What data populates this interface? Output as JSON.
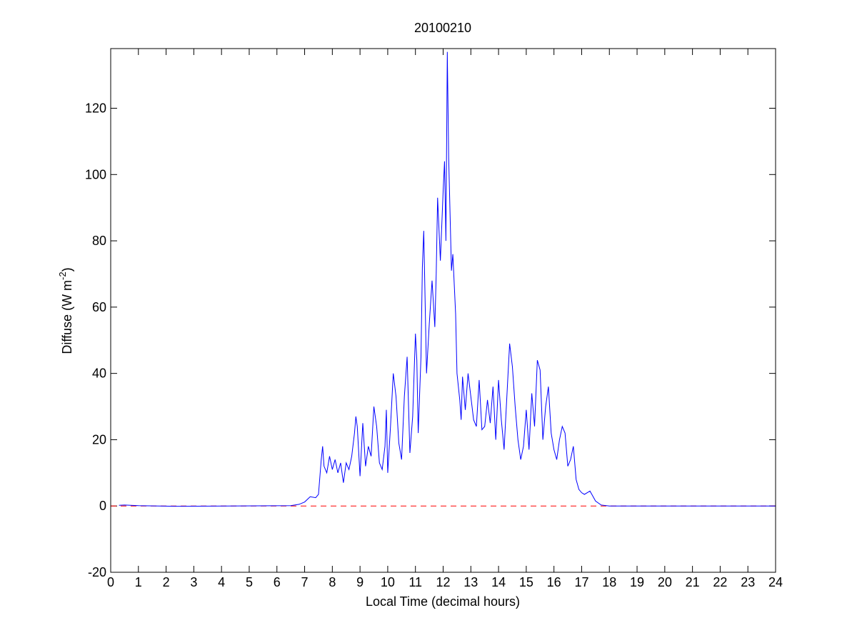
{
  "chart_data": {
    "type": "line",
    "title": "20100210",
    "xlabel": "Local Time (decimal hours)",
    "ylabel": {
      "text": "Diffuse (W m",
      "superscript": "-2",
      "suffix": ")"
    },
    "xlim": [
      0,
      24
    ],
    "ylim": [
      -20,
      138
    ],
    "xticks": [
      0,
      1,
      2,
      3,
      4,
      5,
      6,
      7,
      8,
      9,
      10,
      11,
      12,
      13,
      14,
      15,
      16,
      17,
      18,
      19,
      20,
      21,
      22,
      23,
      24
    ],
    "yticks": [
      -20,
      0,
      20,
      40,
      60,
      80,
      100,
      120
    ],
    "grid": false,
    "x": [
      0.3,
      0.5,
      1,
      2.3,
      6.5,
      6.8,
      7.0,
      7.2,
      7.4,
      7.5,
      7.6,
      7.65,
      7.7,
      7.8,
      7.9,
      8.0,
      8.1,
      8.2,
      8.3,
      8.4,
      8.5,
      8.6,
      8.7,
      8.8,
      8.85,
      8.9,
      9.0,
      9.1,
      9.2,
      9.3,
      9.4,
      9.5,
      9.6,
      9.7,
      9.8,
      9.9,
      9.95,
      10.0,
      10.1,
      10.2,
      10.3,
      10.4,
      10.5,
      10.6,
      10.7,
      10.8,
      10.9,
      11.0,
      11.05,
      11.1,
      11.2,
      11.25,
      11.3,
      11.4,
      11.5,
      11.6,
      11.7,
      11.75,
      11.8,
      11.9,
      12.0,
      12.05,
      12.1,
      12.15,
      12.2,
      12.3,
      12.35,
      12.45,
      12.5,
      12.6,
      12.65,
      12.7,
      12.8,
      12.9,
      13.0,
      13.1,
      13.2,
      13.3,
      13.4,
      13.5,
      13.6,
      13.7,
      13.8,
      13.9,
      14.0,
      14.1,
      14.2,
      14.3,
      14.4,
      14.5,
      14.6,
      14.7,
      14.8,
      14.9,
      15.0,
      15.1,
      15.2,
      15.3,
      15.4,
      15.5,
      15.6,
      15.7,
      15.8,
      15.9,
      16.0,
      16.1,
      16.2,
      16.3,
      16.4,
      16.5,
      16.6,
      16.7,
      16.8,
      16.9,
      17.0,
      17.1,
      17.3,
      17.4,
      17.5,
      17.7,
      18.0,
      24.0
    ],
    "series": [
      {
        "color": "#0000ff",
        "values": [
          0.2,
          0.3,
          0.1,
          -0.1,
          0.1,
          0.5,
          1.2,
          2.8,
          2.5,
          3.5,
          14,
          18,
          12,
          10,
          15,
          11,
          14,
          10,
          13,
          7,
          13,
          11,
          15,
          22,
          27,
          24,
          9,
          25,
          12,
          18,
          15,
          30,
          24,
          13,
          11,
          18,
          29,
          10,
          24,
          40,
          33,
          19,
          14,
          33,
          45,
          16,
          27,
          52,
          44,
          22,
          45,
          72,
          83,
          40,
          55,
          68,
          54,
          70,
          93,
          74,
          95,
          104,
          80,
          137,
          105,
          71,
          76,
          58,
          40,
          32,
          26,
          39,
          29,
          40,
          33,
          26,
          24,
          38,
          23,
          24,
          32,
          25,
          36,
          20,
          38,
          26,
          17,
          33,
          49,
          42,
          30,
          20,
          14,
          18,
          29,
          17,
          34,
          24,
          44,
          41,
          20,
          30,
          36,
          22,
          17,
          14,
          20,
          24,
          22,
          12,
          14,
          18,
          8,
          5,
          4,
          3.5,
          4.5,
          3,
          1.5,
          0.3,
          0,
          0
        ]
      }
    ],
    "reference_lines": [
      {
        "y": 0,
        "color": "#ff0000",
        "style": "dashed"
      }
    ]
  }
}
